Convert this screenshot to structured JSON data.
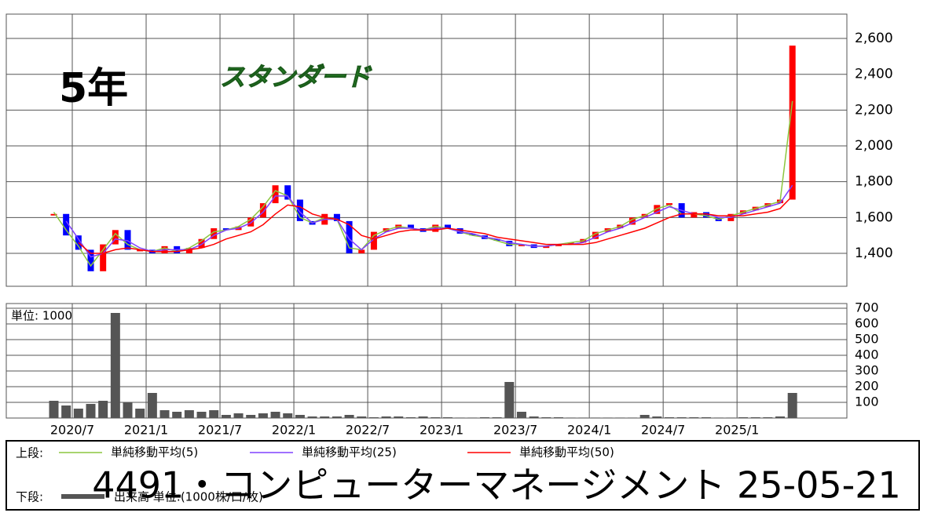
{
  "chart_data": [
    {
      "type": "candlestick",
      "annotations": [
        "5年",
        "スタンダード"
      ],
      "x": [
        "2020/5",
        "2020/6",
        "2020/7",
        "2020/8",
        "2020/9",
        "2020/10",
        "2020/11",
        "2020/12",
        "2021/1",
        "2021/2",
        "2021/3",
        "2021/4",
        "2021/5",
        "2021/6",
        "2021/7",
        "2021/8",
        "2021/9",
        "2021/10",
        "2021/11",
        "2021/12",
        "2022/1",
        "2022/2",
        "2022/3",
        "2022/4",
        "2022/5",
        "2022/6",
        "2022/7",
        "2022/8",
        "2022/9",
        "2022/10",
        "2022/11",
        "2022/12",
        "2023/1",
        "2023/2",
        "2023/3",
        "2023/4",
        "2023/5",
        "2023/6",
        "2023/7",
        "2023/8",
        "2023/9",
        "2023/10",
        "2023/11",
        "2023/12",
        "2024/1",
        "2024/2",
        "2024/3",
        "2024/4",
        "2024/5",
        "2024/6",
        "2024/7",
        "2024/8",
        "2024/9",
        "2024/10",
        "2024/11",
        "2024/12",
        "2025/1",
        "2025/2",
        "2025/3",
        "2025/4",
        "2025/5"
      ],
      "values": [
        1620,
        1500,
        1420,
        1300,
        1450,
        1530,
        1420,
        1420,
        1400,
        1440,
        1400,
        1430,
        1480,
        1540,
        1530,
        1550,
        1600,
        1680,
        1780,
        1700,
        1580,
        1560,
        1620,
        1580,
        1400,
        1420,
        1520,
        1540,
        1560,
        1540,
        1520,
        1560,
        1540,
        1510,
        1500,
        1480,
        1470,
        1440,
        1450,
        1430,
        1440,
        1450,
        1460,
        1480,
        1520,
        1540,
        1560,
        1600,
        1620,
        1670,
        1680,
        1600,
        1630,
        1600,
        1580,
        1620,
        1640,
        1660,
        1680,
        1700,
        2560
      ],
      "up_color": "#ff0000",
      "down_color": "#0000ff",
      "series": [
        {
          "name": "単純移動平均(5)",
          "color": "#8cc63f",
          "values": [
            1630,
            1530,
            1440,
            1330,
            1420,
            1510,
            1450,
            1420,
            1410,
            1430,
            1410,
            1430,
            1470,
            1520,
            1530,
            1550,
            1590,
            1660,
            1750,
            1720,
            1600,
            1570,
            1600,
            1590,
            1430,
            1420,
            1500,
            1530,
            1550,
            1540,
            1530,
            1550,
            1540,
            1520,
            1500,
            1490,
            1470,
            1450,
            1450,
            1440,
            1440,
            1450,
            1460,
            1470,
            1510,
            1530,
            1550,
            1590,
            1610,
            1650,
            1670,
            1620,
            1620,
            1610,
            1590,
            1610,
            1630,
            1650,
            1670,
            1690,
            2250
          ]
        },
        {
          "name": "単純移動平均(25)",
          "color": "#8040ff",
          "values": [
            null,
            1580,
            1480,
            1380,
            1400,
            1480,
            1470,
            1430,
            1410,
            1420,
            1420,
            1420,
            1450,
            1500,
            1530,
            1540,
            1570,
            1630,
            1720,
            1720,
            1630,
            1570,
            1590,
            1590,
            1480,
            1420,
            1480,
            1520,
            1540,
            1540,
            1530,
            1540,
            1540,
            1520,
            1510,
            1490,
            1480,
            1460,
            1450,
            1440,
            1440,
            1450,
            1450,
            1460,
            1490,
            1520,
            1540,
            1570,
            1600,
            1630,
            1660,
            1640,
            1620,
            1620,
            1600,
            1600,
            1620,
            1640,
            1660,
            1680,
            1780
          ]
        },
        {
          "name": "単純移動平均(50)",
          "color": "#ff0000",
          "values": [
            null,
            null,
            1460,
            1400,
            1400,
            1420,
            1430,
            1420,
            1410,
            1410,
            1410,
            1420,
            1430,
            1450,
            1480,
            1500,
            1520,
            1560,
            1620,
            1670,
            1660,
            1620,
            1600,
            1590,
            1560,
            1500,
            1480,
            1500,
            1520,
            1530,
            1530,
            1530,
            1540,
            1530,
            1520,
            1510,
            1490,
            1480,
            1470,
            1460,
            1450,
            1450,
            1450,
            1450,
            1460,
            1480,
            1500,
            1520,
            1540,
            1570,
            1600,
            1620,
            1620,
            1620,
            1610,
            1610,
            1610,
            1620,
            1630,
            1650,
            1720
          ]
        }
      ],
      "ylim": [
        1216,
        2736
      ],
      "yticks": [
        {
          "value": 1400,
          "label": "1,400"
        },
        {
          "value": 1600,
          "label": "1,600"
        },
        {
          "value": 1800,
          "label": "1,800"
        },
        {
          "value": 2000,
          "label": "2,000"
        },
        {
          "value": 2200,
          "label": "2,200"
        },
        {
          "value": 2400,
          "label": "2,400"
        },
        {
          "value": 2600,
          "label": "2,600"
        }
      ],
      "xticks": [
        "2020/7",
        "2021/1",
        "2021/7",
        "2022/1",
        "2022/7",
        "2023/1",
        "2023/7",
        "2024/1",
        "2024/7",
        "2025/1"
      ],
      "grid": true
    },
    {
      "type": "bar",
      "unit_label": "単位: 1000",
      "x": [
        "2020/5",
        "2020/6",
        "2020/7",
        "2020/8",
        "2020/9",
        "2020/10",
        "2020/11",
        "2020/12",
        "2021/1",
        "2021/2",
        "2021/3",
        "2021/4",
        "2021/5",
        "2021/6",
        "2021/7",
        "2021/8",
        "2021/9",
        "2021/10",
        "2021/11",
        "2021/12",
        "2022/1",
        "2022/2",
        "2022/3",
        "2022/4",
        "2022/5",
        "2022/6",
        "2022/7",
        "2022/8",
        "2022/9",
        "2022/10",
        "2022/11",
        "2022/12",
        "2023/1",
        "2023/2",
        "2023/3",
        "2023/4",
        "2023/5",
        "2023/6",
        "2023/7",
        "2023/8",
        "2023/9",
        "2023/10",
        "2023/11",
        "2023/12",
        "2024/1",
        "2024/2",
        "2024/3",
        "2024/4",
        "2024/5",
        "2024/6",
        "2024/7",
        "2024/8",
        "2024/9",
        "2024/10",
        "2024/11",
        "2024/12",
        "2025/1",
        "2025/2",
        "2025/3",
        "2025/4",
        "2025/5"
      ],
      "values": [
        110,
        80,
        60,
        90,
        110,
        670,
        100,
        60,
        160,
        50,
        40,
        50,
        40,
        50,
        20,
        30,
        20,
        30,
        40,
        30,
        20,
        10,
        10,
        10,
        20,
        10,
        5,
        10,
        10,
        5,
        10,
        5,
        5,
        3,
        3,
        5,
        5,
        230,
        40,
        10,
        5,
        5,
        3,
        3,
        3,
        3,
        3,
        3,
        20,
        10,
        5,
        5,
        5,
        5,
        3,
        3,
        5,
        5,
        5,
        10,
        160
      ],
      "name": "出来高 単位:(1000株/口/枚)",
      "color": "#555555",
      "ylim": [
        0,
        730
      ],
      "yticks": [
        100,
        200,
        300,
        400,
        500,
        600,
        700
      ],
      "xticks": [
        "2020/7",
        "2021/1",
        "2021/7",
        "2022/1",
        "2022/7",
        "2023/1",
        "2023/7",
        "2024/1",
        "2024/7",
        "2025/1"
      ],
      "grid": true
    }
  ],
  "legend": {
    "upper_label": "上段:",
    "lower_label": "下段:"
  },
  "title": "4491・コンピューターマネージメント 25-05-21"
}
